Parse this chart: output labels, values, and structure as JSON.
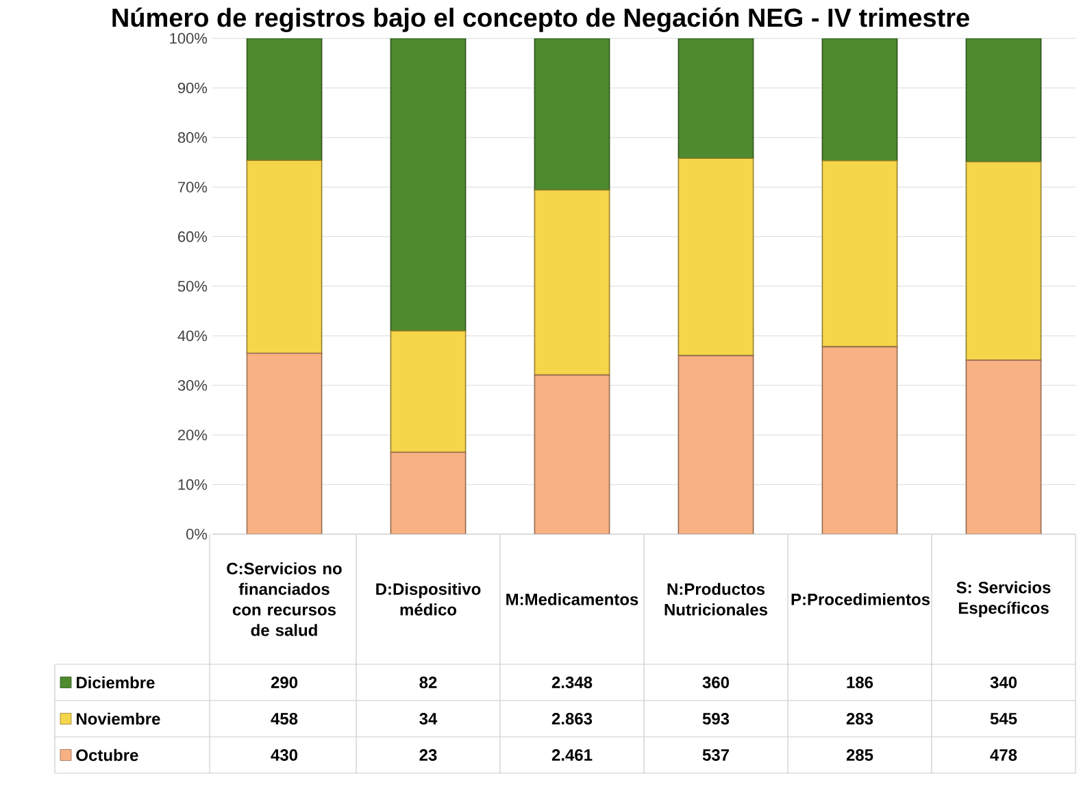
{
  "chart_data": [
    {
      "type": "bar",
      "title": "Número de registros bajo el concepto de Negación NEG - IV trimestre",
      "stacked": true,
      "categories": [
        "C:Servicios no financiados con recursos de salud",
        "D:Dispositivo médico",
        "M:Medicamentos",
        "N:Productos Nutricionales",
        "P:Procedimientos",
        "S: Servicios Específicos"
      ],
      "series": [
        {
          "name": "Octubre",
          "color": "#f7b183",
          "values": [
            36.5,
            16.5,
            32.1,
            36.0,
            37.8,
            35.1
          ]
        },
        {
          "name": "Noviembre",
          "color": "#f5d54a",
          "values": [
            38.9,
            24.5,
            37.3,
            39.8,
            37.5,
            40.0
          ]
        },
        {
          "name": "Diciembre",
          "color": "#4e8a2e",
          "values": [
            24.6,
            59.0,
            30.6,
            24.2,
            24.7,
            24.9
          ]
        }
      ],
      "ylim": [
        0,
        100
      ],
      "yticks": [
        {
          "value": 0,
          "label": "0%"
        },
        {
          "value": 10,
          "label": "10%"
        },
        {
          "value": 20,
          "label": "20%"
        },
        {
          "value": 30,
          "label": "30%"
        },
        {
          "value": 40,
          "label": "40%"
        },
        {
          "value": 50,
          "label": "50%"
        },
        {
          "value": 60,
          "label": "60%"
        },
        {
          "value": 70,
          "label": "70%"
        },
        {
          "value": 80,
          "label": "80%"
        },
        {
          "value": 90,
          "label": "90%"
        },
        {
          "value": 100,
          "label": "100%"
        }
      ],
      "grid": "y",
      "legend": "bottom"
    },
    {
      "type": "other",
      "annotations": [
        "290",
        "82",
        "2.348",
        "360",
        "186",
        "340",
        "458",
        "34",
        "2.863",
        "593",
        "283",
        "545",
        "430",
        "23",
        "2.461",
        "537",
        "285",
        "478"
      ]
    }
  ]
}
